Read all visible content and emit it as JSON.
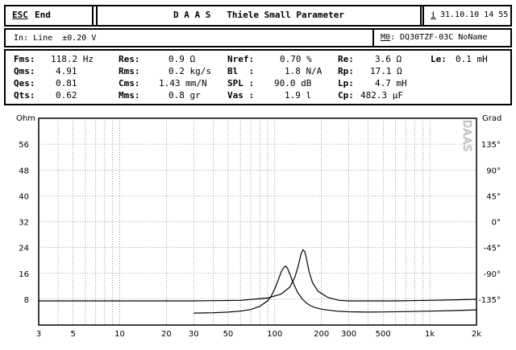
{
  "title_bar": {
    "esc_key": "ESC",
    "esc_action": "End",
    "title": "D A A S   Thiele Small Parameter",
    "info_icon": "i",
    "datetime": "31.10.10 14 55"
  },
  "input_bar": {
    "input_info": "In: Line  ±0.20 V",
    "model_key": "M0",
    "model_name": ": DQ30TZF-03C NoName"
  },
  "params": {
    "col1": [
      {
        "label": "Fms:",
        "value": "118.2 Hz"
      },
      {
        "label": "Qms:",
        "value": "4.91"
      },
      {
        "label": "Qes:",
        "value": "0.81"
      },
      {
        "label": "Qts:",
        "value": "0.62"
      }
    ],
    "col2": [
      {
        "label": "Res:",
        "value": "0.9 Ω"
      },
      {
        "label": "Rms:",
        "value": "0.2 kg/s"
      },
      {
        "label": "Cms:",
        "value": "1.43 mm/N"
      },
      {
        "label": "Mms:",
        "value": "0.8 gr"
      }
    ],
    "col3": [
      {
        "label": "Nref:",
        "value": "0.70 %"
      },
      {
        "label": "Bl  :",
        "value": "1.8 N/A"
      },
      {
        "label": "SPL :",
        "value": "90.0 dB"
      },
      {
        "label": "Vas :",
        "value": "1.9 l"
      }
    ],
    "col4": [
      {
        "label": "Re:",
        "value": "3.6 Ω"
      },
      {
        "label": "Rp:",
        "value": "17.1 Ω"
      },
      {
        "label": "Lp:",
        "value": "4.7 mH"
      },
      {
        "label": "Cp:",
        "value": "482.3 µF"
      }
    ],
    "col5": [
      {
        "label": "Le:",
        "value": "0.1 mH"
      }
    ]
  },
  "chart_data": {
    "type": "line",
    "x_scale": "log",
    "xlim": [
      3,
      2000
    ],
    "x_ticks": [
      3,
      5,
      10,
      20,
      30,
      50,
      100,
      200,
      300,
      500,
      1000,
      2000
    ],
    "x_tick_labels": [
      "3",
      "5",
      "10",
      "20",
      "30",
      "50",
      "100",
      "200",
      "300",
      "500",
      "1k",
      "2k"
    ],
    "left_axis": {
      "label": "Ohm",
      "ylim": [
        0,
        64
      ],
      "ticks": [
        8,
        16,
        24,
        32,
        40,
        48,
        56
      ]
    },
    "right_axis": {
      "label": "Grad",
      "ylim": [
        -180,
        180
      ],
      "ticks": [
        135,
        90,
        45,
        0,
        -45,
        -90,
        -135
      ],
      "tick_labels": [
        "135°",
        "90°",
        "45°",
        "0°",
        "-45°",
        "-90°",
        "-135°"
      ]
    },
    "watermark": "DAAS",
    "grid": true,
    "series": [
      {
        "curve": "impedance",
        "x": [
          30,
          40,
          50,
          60,
          70,
          80,
          90,
          95,
          100,
          105,
          110,
          115,
          118,
          121,
          125,
          130,
          140,
          150,
          160,
          170,
          180,
          200,
          250,
          300,
          400,
          500,
          700,
          1000,
          1500,
          2000
        ],
        "y": [
          3.7,
          3.8,
          4.0,
          4.3,
          4.8,
          5.8,
          7.5,
          9.0,
          11.2,
          13.8,
          16.5,
          18.0,
          18.2,
          17.5,
          15.8,
          13.6,
          10.2,
          8.1,
          6.8,
          6.0,
          5.5,
          4.9,
          4.3,
          4.1,
          4.0,
          4.05,
          4.15,
          4.3,
          4.5,
          4.7
        ]
      },
      {
        "curve": "phase",
        "x": [
          3,
          10,
          30,
          60,
          90,
          110,
          125,
          135,
          142,
          148,
          152,
          156,
          160,
          166,
          175,
          190,
          220,
          260,
          300,
          400,
          600,
          1000,
          1500,
          2000
        ],
        "y": [
          -138,
          -138,
          -138,
          -137,
          -133,
          -126,
          -114,
          -96,
          -76,
          -55,
          -49,
          -52,
          -64,
          -86,
          -106,
          -121,
          -132,
          -137,
          -138,
          -138,
          -138,
          -137,
          -136,
          -135
        ]
      }
    ]
  }
}
